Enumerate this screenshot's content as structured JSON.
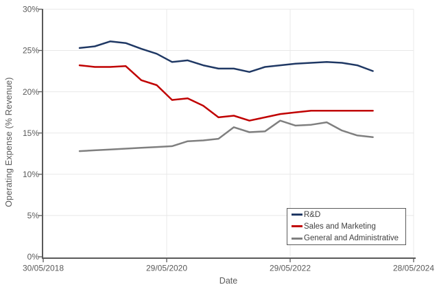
{
  "chart_data": {
    "type": "line",
    "title": "",
    "xlabel": "Date",
    "ylabel": "Operating Expense (% Revenue)",
    "x_axis_range": [
      "30/05/2018",
      "28/05/2024"
    ],
    "x_tick_labels": [
      "30/05/2018",
      "29/05/2020",
      "29/05/2022",
      "28/05/2024"
    ],
    "y_ticks": [
      0,
      5,
      10,
      15,
      20,
      25,
      30
    ],
    "y_tick_labels": [
      "0%",
      "5%",
      "10%",
      "15%",
      "20%",
      "25%",
      "30%"
    ],
    "ylim": [
      0,
      30
    ],
    "grid": true,
    "legend_position": "inside-bottom-right",
    "x": [
      "31/12/2018",
      "31/03/2019",
      "30/06/2019",
      "30/09/2019",
      "31/12/2019",
      "31/03/2020",
      "30/06/2020",
      "30/09/2020",
      "31/12/2020",
      "31/03/2021",
      "30/06/2021",
      "30/09/2021",
      "31/12/2021",
      "31/03/2022",
      "30/06/2022",
      "30/09/2022",
      "31/12/2022",
      "31/03/2023",
      "30/06/2023",
      "30/09/2023"
    ],
    "series": [
      {
        "name": "R&D",
        "color": "#1F3864",
        "values": [
          25.3,
          25.5,
          26.1,
          25.9,
          25.2,
          24.6,
          23.6,
          23.8,
          23.2,
          22.8,
          22.8,
          22.4,
          23.0,
          23.2,
          23.4,
          23.5,
          23.6,
          23.5,
          23.2,
          22.5
        ]
      },
      {
        "name": "Sales and Marketing",
        "color": "#C00000",
        "values": [
          23.2,
          23.0,
          23.0,
          23.1,
          21.4,
          20.8,
          19.0,
          19.2,
          18.3,
          16.9,
          17.1,
          16.5,
          16.9,
          17.3,
          17.5,
          17.7,
          17.7,
          17.7,
          17.7,
          17.7
        ]
      },
      {
        "name": "General and Administrative",
        "color": "#7F7F7F",
        "values": [
          12.8,
          12.9,
          13.0,
          13.1,
          13.2,
          13.3,
          13.4,
          14.0,
          14.1,
          14.3,
          15.7,
          15.1,
          15.2,
          16.5,
          15.9,
          16.0,
          16.3,
          15.3,
          14.7,
          14.5
        ]
      }
    ],
    "style_colors": {
      "axis": "#595959",
      "gridline": "#E8E8E8",
      "tick_label": "#595959",
      "legend_border": "#595959",
      "legend_text": "#404040",
      "background": "#FFFFFF"
    }
  }
}
